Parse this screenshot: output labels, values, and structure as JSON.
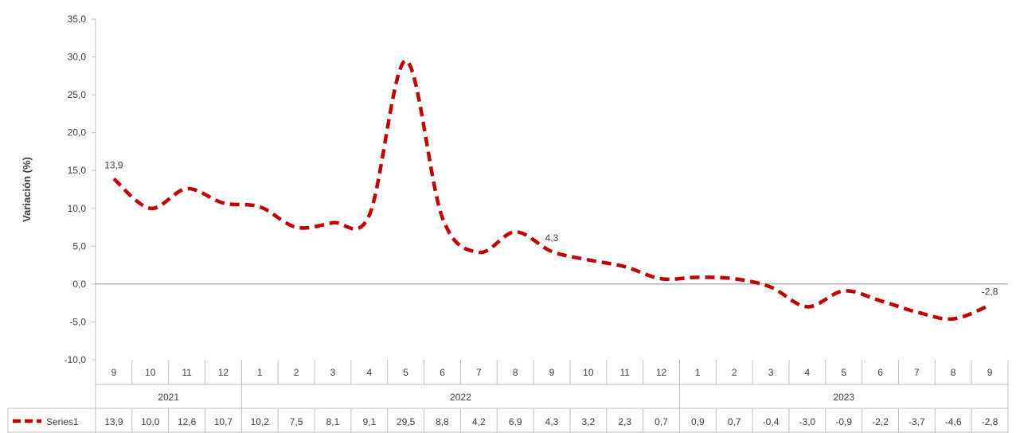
{
  "chart_data": {
    "type": "line",
    "ylabel": "Variación (%)",
    "ylim": [
      -10,
      35
    ],
    "y_ticks": [
      "-10,0",
      "-5,0",
      "0,0",
      "5,0",
      "10,0",
      "15,0",
      "20,0",
      "25,0",
      "30,0",
      "35,0"
    ],
    "categories": [
      "9",
      "10",
      "11",
      "12",
      "1",
      "2",
      "3",
      "4",
      "5",
      "6",
      "7",
      "8",
      "9",
      "10",
      "11",
      "12",
      "1",
      "2",
      "3",
      "4",
      "5",
      "6",
      "7",
      "8",
      "9"
    ],
    "years": [
      {
        "label": "2021",
        "count": 4
      },
      {
        "label": "2022",
        "count": 12
      },
      {
        "label": "2023",
        "count": 9
      }
    ],
    "series": [
      {
        "name": "Series1",
        "color": "#C00000",
        "values": [
          13.9,
          10.0,
          12.6,
          10.7,
          10.2,
          7.5,
          8.1,
          9.1,
          29.5,
          8.8,
          4.2,
          6.9,
          4.3,
          3.2,
          2.3,
          0.7,
          0.9,
          0.7,
          -0.4,
          -3.0,
          -0.9,
          -2.2,
          -3.7,
          -4.6,
          -2.8
        ],
        "value_labels": [
          "13,9",
          "10,0",
          "12,6",
          "10,7",
          "10,2",
          "7,5",
          "8,1",
          "9,1",
          "29,5",
          "8,8",
          "4,2",
          "6,9",
          "4,3",
          "3,2",
          "2,3",
          "0,7",
          "0,9",
          "0,7",
          "-0,4",
          "-3,0",
          "-0,9",
          "-2,2",
          "-3,7",
          "-4,6",
          "-2,8"
        ]
      }
    ],
    "data_labels": [
      {
        "index": 0,
        "text": "13,9"
      },
      {
        "index": 12,
        "text": "4,3"
      },
      {
        "index": 24,
        "text": "-2,8"
      }
    ],
    "grid": false,
    "legend": "data-table"
  }
}
